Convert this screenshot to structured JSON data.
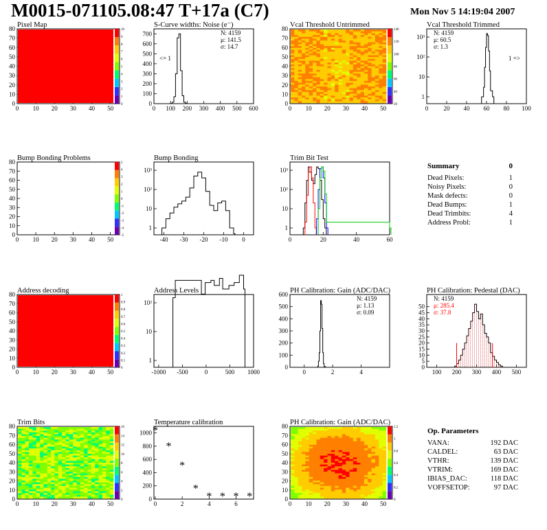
{
  "header": {
    "title": "M0015-071105.08:47 T+17a (C7)",
    "date": "Mon Nov  5 14:19:04 2007"
  },
  "chart_data": [
    {
      "id": "pixel-map",
      "type": "heatmap",
      "title": "Pixel Map",
      "xlim": [
        0,
        52
      ],
      "ylim": [
        0,
        80
      ],
      "xticks": [
        "0",
        "10",
        "20",
        "30",
        "40",
        "50"
      ],
      "yticks": [
        "0",
        "10",
        "20",
        "30",
        "40",
        "50",
        "60",
        "70",
        "80"
      ],
      "palette": {
        "ticks": [
          "0",
          "1",
          "2",
          "3",
          "4",
          "5",
          "6",
          "7",
          "8",
          "9",
          "10"
        ],
        "range": [
          0,
          10
        ]
      },
      "value": "uniform maximum (red)",
      "fill": "#ff0000"
    },
    {
      "id": "scurve-noise",
      "type": "line",
      "title": "S-Curve widths: Noise (e⁻)",
      "xlim": [
        0,
        600
      ],
      "xticks": [
        "0",
        "100",
        "200",
        "300",
        "400",
        "500",
        "600"
      ],
      "ylim": [
        0,
        750
      ],
      "yticks": [
        "0",
        "100",
        "200",
        "300",
        "400",
        "500",
        "600",
        "700"
      ],
      "stats": [
        "N: 4159",
        "μ: 141.5",
        "σ: 14.7"
      ],
      "annotation": "<= 1",
      "x": [
        90,
        100,
        110,
        120,
        130,
        140,
        150,
        160,
        170,
        180,
        190,
        200
      ],
      "y": [
        0,
        2,
        15,
        70,
        300,
        660,
        700,
        330,
        80,
        15,
        3,
        0
      ]
    },
    {
      "id": "vcal-untrimmed",
      "type": "heatmap",
      "title": "Vcal Threshold Untrimmed",
      "xlim": [
        0,
        52
      ],
      "ylim": [
        0,
        80
      ],
      "xticks": [
        "0",
        "10",
        "20",
        "30",
        "40",
        "50"
      ],
      "yticks": [
        "0",
        "10",
        "20",
        "30",
        "40",
        "50",
        "60",
        "70",
        "80"
      ],
      "palette": {
        "ticks": [
          "20",
          "40",
          "60",
          "80",
          "100",
          "120",
          "140"
        ]
      },
      "value": "mostly yellow/orange"
    },
    {
      "id": "vcal-trimmed",
      "type": "line",
      "title": "Vcal Threshold Trimmed",
      "xlim": [
        0,
        100
      ],
      "log_y": true,
      "xticks": [
        "0",
        "20",
        "40",
        "60",
        "80",
        "100"
      ],
      "yticks": [
        "1",
        "10",
        "10²",
        "10³"
      ],
      "stats": [
        "N: 4159",
        "μ: 60.5",
        "σ:  1.3"
      ],
      "annotation": "1 =>",
      "x": [
        55,
        57,
        58,
        59,
        60,
        61,
        62,
        63,
        64,
        66
      ],
      "y": [
        1,
        3,
        30,
        300,
        1500,
        1200,
        200,
        20,
        2,
        1
      ]
    },
    {
      "id": "bump-problems",
      "type": "heatmap",
      "title": "Bump Bonding Problems",
      "xlim": [
        0,
        52
      ],
      "ylim": [
        0,
        80
      ],
      "xticks": [
        "0",
        "10",
        "20",
        "30",
        "40",
        "50"
      ],
      "yticks": [
        "0",
        "10",
        "20",
        "30",
        "40",
        "50",
        "60",
        "70",
        "80"
      ],
      "palette": {
        "ticks": [
          "-5",
          "-4",
          "-3",
          "-2",
          "-1",
          "0",
          "1",
          "2",
          "3",
          "4",
          "5"
        ]
      },
      "value": "empty"
    },
    {
      "id": "bump-bonding",
      "type": "line",
      "title": "Bump Bonding",
      "xlim": [
        -45,
        5
      ],
      "log_y": true,
      "xticks": [
        "-40",
        "-30",
        "-20",
        "-10",
        "0"
      ],
      "yticks": [
        "1",
        "10",
        "10²",
        "10³"
      ],
      "x": [
        -41,
        -39,
        -37,
        -35,
        -33,
        -31,
        -29,
        -27,
        -25,
        -23,
        -21,
        -19,
        -17,
        -15,
        -13,
        -11,
        -9,
        -7,
        -5
      ],
      "y": [
        1,
        3,
        6,
        12,
        18,
        25,
        40,
        120,
        500,
        800,
        400,
        80,
        15,
        8,
        20,
        25,
        8,
        1,
        0
      ]
    },
    {
      "id": "trim-bit-test",
      "type": "line",
      "title": "Trim Bit Test",
      "xlim": [
        0,
        60
      ],
      "log_y": true,
      "xticks": [
        "0",
        "20",
        "40",
        "60"
      ],
      "yticks": [
        "1",
        "10",
        "10²",
        "10³"
      ],
      "series": [
        {
          "color": "#000000",
          "x": [
            8,
            9,
            10,
            11,
            12,
            13,
            14,
            15,
            16,
            17,
            18,
            19,
            20,
            21
          ],
          "y": [
            1,
            20,
            300,
            1500,
            800,
            300,
            200,
            600,
            1500,
            1200,
            300,
            30,
            3,
            1
          ]
        },
        {
          "color": "#ff0000",
          "x": [
            9,
            10,
            11,
            12,
            13,
            14,
            15
          ],
          "y": [
            2,
            50,
            800,
            1500,
            400,
            20,
            1
          ]
        },
        {
          "color": "#0000ff",
          "x": [
            16,
            17,
            18,
            19,
            20,
            21,
            22
          ],
          "y": [
            3,
            100,
            1200,
            1500,
            400,
            20,
            1
          ]
        },
        {
          "color": "#00cc00",
          "x": [
            17,
            18,
            19,
            20,
            21,
            22,
            60
          ],
          "y": [
            10,
            400,
            1500,
            900,
            60,
            2,
            1
          ]
        }
      ]
    },
    {
      "id": "address-decoding",
      "type": "heatmap",
      "title": "Address decoding",
      "xlim": [
        0,
        52
      ],
      "ylim": [
        0,
        80
      ],
      "xticks": [
        "0",
        "10",
        "20",
        "30",
        "40",
        "50"
      ],
      "yticks": [
        "0",
        "10",
        "20",
        "30",
        "40",
        "50",
        "60",
        "70",
        "80"
      ],
      "palette": {
        "ticks": [
          "0",
          "0.1",
          "0.2",
          "0.3",
          "0.4",
          "0.5",
          "0.6",
          "0.7",
          "0.8",
          "0.9",
          "1"
        ]
      },
      "value": "uniform maximum (red)",
      "fill": "#ff0000"
    },
    {
      "id": "address-levels",
      "type": "line",
      "title": "Address Levels",
      "xlim": [
        -1100,
        1000
      ],
      "log_y": true,
      "xticks": [
        "-1000",
        "-500",
        "0",
        "500",
        "1000"
      ],
      "yticks": [
        "1",
        "10",
        "10²"
      ],
      "x": [
        -700,
        -650,
        -100,
        -20,
        100,
        170,
        280,
        350,
        480,
        590,
        700,
        790
      ],
      "y": [
        150,
        600,
        200,
        500,
        600,
        400,
        700,
        300,
        400,
        500,
        900,
        300
      ]
    },
    {
      "id": "ph-gain",
      "type": "line",
      "title": "PH Calibration: Gain (ADC/DAC)",
      "xlim": [
        -1,
        6
      ],
      "xticks": [
        "0",
        "2",
        "4"
      ],
      "ylim": [
        0,
        600
      ],
      "yticks": [
        "0",
        "100",
        "200",
        "300",
        "400",
        "500",
        "600"
      ],
      "stats": [
        "N: 4159",
        "μ: 1.13",
        "σ: 0.09"
      ],
      "x": [
        0.85,
        0.95,
        1.0,
        1.05,
        1.1,
        1.15,
        1.2,
        1.25,
        1.3,
        1.35,
        1.4,
        1.5
      ],
      "y": [
        0,
        10,
        50,
        120,
        300,
        550,
        520,
        320,
        120,
        30,
        5,
        0
      ]
    },
    {
      "id": "ph-pedestal",
      "type": "line",
      "title": "PH Calibration: Pedestal (DAC)",
      "xlim": [
        50,
        550
      ],
      "xticks": [
        "100",
        "200",
        "300",
        "400",
        "500"
      ],
      "ylim": [
        0,
        60
      ],
      "yticks": [
        "0",
        "5",
        "10",
        "15",
        "20",
        "25",
        "30",
        "35",
        "40",
        "45",
        "50"
      ],
      "stats": [
        "N: 4159",
        "μ: 285.4",
        "σ: 37.8"
      ],
      "x": [
        190,
        200,
        210,
        220,
        230,
        240,
        250,
        260,
        270,
        280,
        290,
        300,
        310,
        320,
        330,
        340,
        350,
        360,
        370,
        380,
        390,
        400,
        410,
        420,
        430
      ],
      "y": [
        1,
        3,
        6,
        10,
        15,
        20,
        26,
        32,
        38,
        45,
        52,
        46,
        40,
        44,
        35,
        28,
        25,
        20,
        12,
        9,
        6,
        4,
        2,
        1,
        0
      ]
    },
    {
      "id": "trim-bits",
      "type": "heatmap",
      "title": "Trim Bits",
      "xlim": [
        0,
        52
      ],
      "ylim": [
        0,
        80
      ],
      "xticks": [
        "0",
        "10",
        "20",
        "30",
        "40",
        "50"
      ],
      "yticks": [
        "0",
        "10",
        "20",
        "30",
        "40",
        "50",
        "60",
        "70",
        "80"
      ],
      "palette": {
        "ticks": [
          "0",
          "2",
          "4",
          "6",
          "8",
          "10",
          "12",
          "14",
          "16"
        ]
      },
      "value": "mostly green"
    },
    {
      "id": "temperature-cal",
      "type": "scatter",
      "title": "Temperature calibration",
      "xlim": [
        -0.1,
        7.3
      ],
      "xticks": [
        "0",
        "2",
        "4",
        "6"
      ],
      "ylim": [
        0,
        1100
      ],
      "yticks": [
        "0",
        "200",
        "400",
        "600",
        "800",
        "1000"
      ],
      "x": [
        0,
        1,
        2,
        3,
        4,
        5,
        6,
        7
      ],
      "y": [
        1040,
        800,
        510,
        160,
        40,
        40,
        40,
        40
      ]
    },
    {
      "id": "ph-gain-map",
      "type": "heatmap",
      "title": "PH Calibration: Gain (ADC/DAC)",
      "xlim": [
        0,
        52
      ],
      "ylim": [
        0,
        80
      ],
      "xticks": [
        "0",
        "10",
        "20",
        "30",
        "40",
        "50"
      ],
      "yticks": [
        "0",
        "10",
        "20",
        "30",
        "40",
        "50",
        "60",
        "70",
        "80"
      ],
      "palette": {
        "ticks": [
          "0",
          "0.2",
          "0.4",
          "0.6",
          "0.8",
          "1",
          "1.2"
        ]
      },
      "value": "red/orange centre, yellow edges"
    }
  ],
  "summary": {
    "title": "Summary",
    "value": "0",
    "rows": [
      {
        "label": "Dead Pixels:",
        "value": "1"
      },
      {
        "label": "Noisy Pixels:",
        "value": "0"
      },
      {
        "label": "Mask defects:",
        "value": "0"
      },
      {
        "label": "Dead Bumps:",
        "value": "1"
      },
      {
        "label": "Dead Trimbits:",
        "value": "4"
      },
      {
        "label": "Address Probl:",
        "value": "1"
      }
    ]
  },
  "op_parameters": {
    "title": "Op. Parameters",
    "rows": [
      {
        "label": "VANA:",
        "value": "192 DAC"
      },
      {
        "label": "CALDEL:",
        "value": "63 DAC"
      },
      {
        "label": "VTHR:",
        "value": "139 DAC"
      },
      {
        "label": "VTRIM:",
        "value": "169 DAC"
      },
      {
        "label": "IBIAS_DAC:",
        "value": "118 DAC"
      },
      {
        "label": "VOFFSETOP:",
        "value": "97 DAC"
      }
    ]
  },
  "colors": {
    "red": "#ff0000",
    "palette": [
      "#6a00b0",
      "#3030ff",
      "#00c8ff",
      "#00ff70",
      "#7fff00",
      "#e0ff00",
      "#ffcc00",
      "#ff8000",
      "#ff0000"
    ]
  }
}
